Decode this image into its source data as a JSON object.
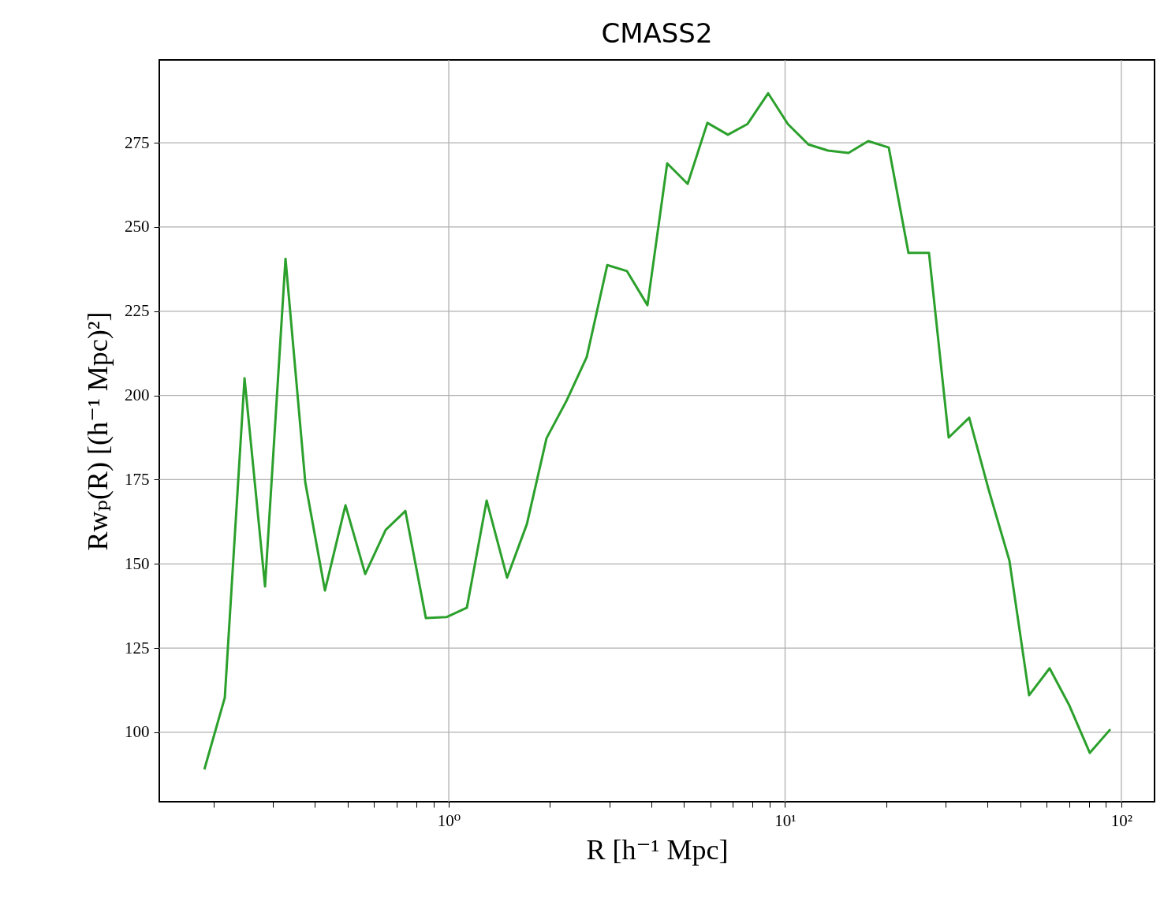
{
  "chart_data": {
    "type": "line",
    "title": "CMASS2",
    "xlabel": "R [h⁻¹ Mpc]",
    "ylabel": "Rwₚ(R) [(h⁻¹ Mpc)²]",
    "log": "x",
    "grid": true,
    "marker": "none",
    "line_style": "solid",
    "xlim": [
      0.1378,
      125.5
    ],
    "ylim": [
      79.4,
      299.6
    ],
    "xticks": [
      {
        "value": 0.2,
        "label": null
      },
      {
        "value": 0.3,
        "label": null
      },
      {
        "value": 0.4,
        "label": null
      },
      {
        "value": 0.5,
        "label": null
      },
      {
        "value": 0.6,
        "label": null
      },
      {
        "value": 0.7,
        "label": null
      },
      {
        "value": 0.8,
        "label": null
      },
      {
        "value": 0.9,
        "label": null
      },
      {
        "value": 1,
        "label": "10⁰"
      },
      {
        "value": 2,
        "label": null
      },
      {
        "value": 3,
        "label": null
      },
      {
        "value": 4,
        "label": null
      },
      {
        "value": 5,
        "label": null
      },
      {
        "value": 6,
        "label": null
      },
      {
        "value": 7,
        "label": null
      },
      {
        "value": 8,
        "label": null
      },
      {
        "value": 9,
        "label": null
      },
      {
        "value": 10,
        "label": "10¹"
      },
      {
        "value": 20,
        "label": null
      },
      {
        "value": 30,
        "label": null
      },
      {
        "value": 40,
        "label": null
      },
      {
        "value": 50,
        "label": null
      },
      {
        "value": 60,
        "label": null
      },
      {
        "value": 70,
        "label": null
      },
      {
        "value": 80,
        "label": null
      },
      {
        "value": 90,
        "label": null
      },
      {
        "value": 100,
        "label": "10²"
      }
    ],
    "yticks": [
      100,
      125,
      150,
      175,
      200,
      225,
      250,
      275
    ],
    "x": [
      0.1876,
      0.2158,
      0.247,
      0.2842,
      0.327,
      0.3744,
      0.4283,
      0.493,
      0.5643,
      0.6494,
      0.743,
      0.855,
      0.984,
      1.132,
      1.296,
      1.491,
      1.707,
      1.953,
      2.247,
      2.572,
      2.96,
      3.388,
      3.898,
      4.462,
      5.133,
      5.875,
      6.761,
      7.737,
      8.904,
      10.19,
      11.73,
      13.42,
      15.44,
      17.67,
      20.34,
      23.28,
      26.79,
      30.66,
      35.28,
      40.37,
      46.46,
      53.18,
      61.18,
      70.02,
      80.58,
      92.72
    ],
    "series": [
      {
        "color": "#2ca02c",
        "values": [
          89.0,
          110.3,
          205.1,
          143.3,
          240.6,
          174.2,
          142.1,
          167.4,
          147.0,
          160.1,
          165.7,
          133.9,
          134.2,
          137.0,
          168.8,
          145.9,
          161.8,
          187.3,
          198.7,
          211.4,
          238.7,
          236.9,
          226.8,
          268.9,
          262.8,
          280.9,
          277.4,
          280.6,
          289.7,
          280.6,
          274.5,
          272.7,
          272.0,
          275.5,
          273.6,
          242.3,
          242.3,
          187.5,
          193.4,
          171.8,
          151.0,
          111.0,
          119.0,
          108.0,
          93.9,
          100.9
        ]
      }
    ]
  }
}
